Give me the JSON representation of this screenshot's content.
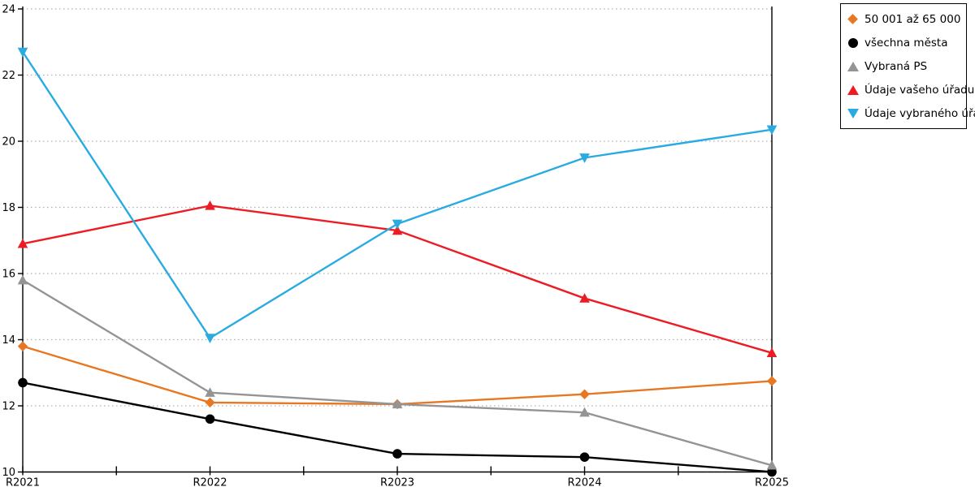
{
  "chart_data": {
    "type": "line",
    "categories": [
      "R2021",
      "R2022",
      "R2023",
      "R2024",
      "R2025"
    ],
    "series": [
      {
        "name": "50 001 až 65 000",
        "marker": "diamond",
        "color": "#E87722",
        "values": [
          13.8,
          12.1,
          12.05,
          12.35,
          12.75
        ]
      },
      {
        "name": "všechna města",
        "marker": "circle",
        "color": "#000000",
        "values": [
          12.7,
          11.6,
          10.55,
          10.45,
          10.0
        ]
      },
      {
        "name": "Vybraná PS",
        "marker": "triangle-up",
        "color": "#949494",
        "values": [
          15.8,
          12.4,
          12.05,
          11.8,
          10.2
        ]
      },
      {
        "name": "Údaje vašeho úřadu",
        "marker": "triangle-up",
        "color": "#ED1C24",
        "values": [
          16.9,
          18.05,
          17.3,
          15.25,
          13.6
        ]
      },
      {
        "name": "Údaje vybraného úřadu",
        "marker": "triangle-down",
        "color": "#29ABE2",
        "values": [
          22.7,
          14.05,
          17.5,
          19.5,
          20.35
        ]
      }
    ],
    "title": "",
    "xlabel": "",
    "ylabel": "",
    "ylim": [
      10,
      24
    ],
    "y_ticks": [
      10,
      12,
      14,
      16,
      18,
      20,
      22,
      24
    ],
    "x_minor_ticks_at_midpoints": true,
    "grid": "horizontal-dotted",
    "gridline_color": "#AFAFAF",
    "axis_color": "#000000",
    "tick_label_color": "#000000",
    "legend_position": "outside-top-right",
    "plot_border": "left-bottom-right"
  }
}
